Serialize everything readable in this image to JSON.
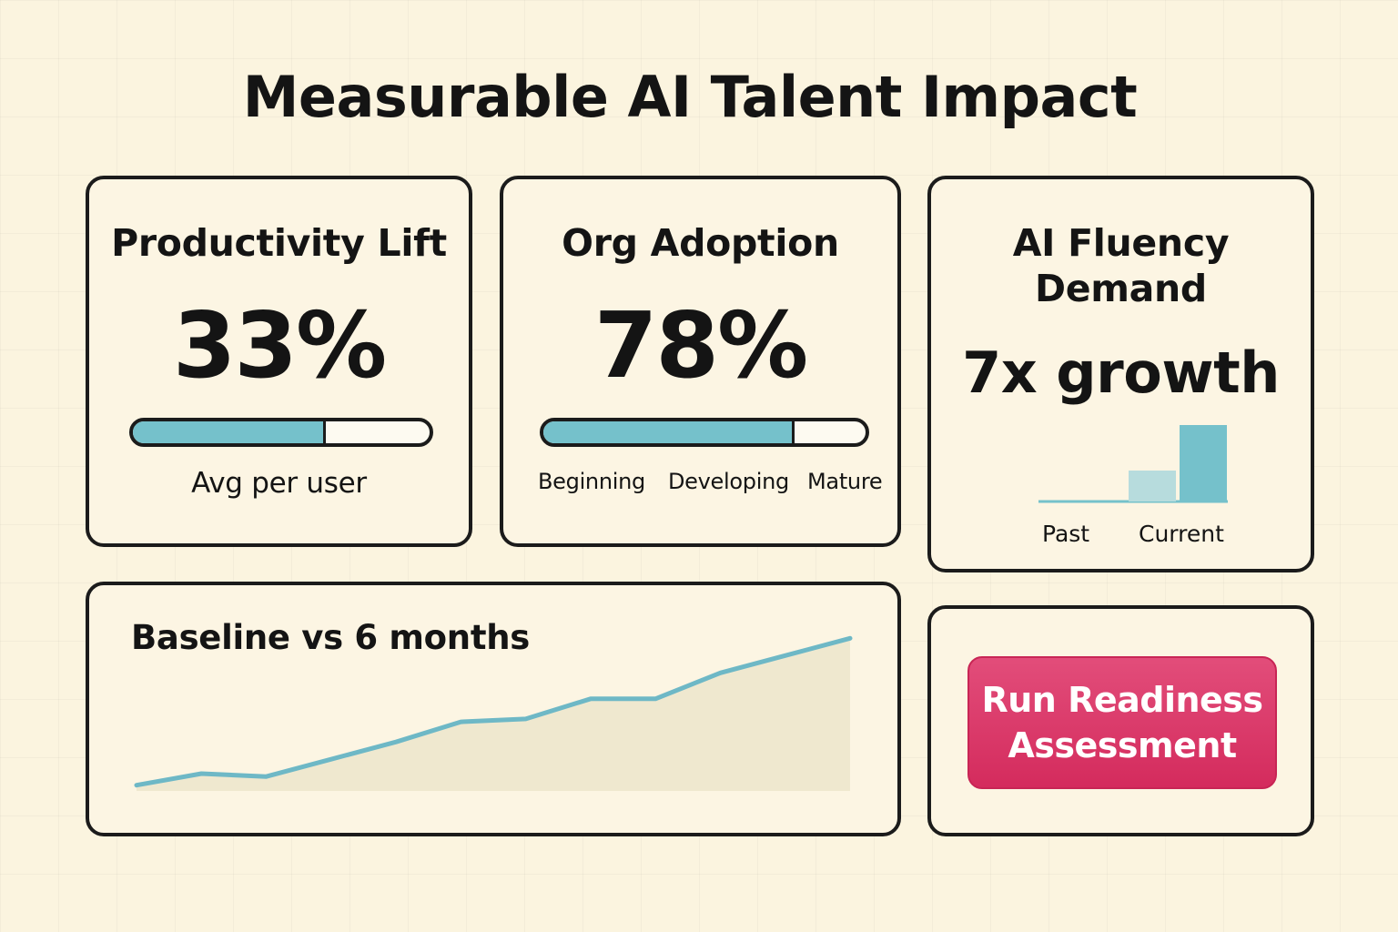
{
  "title": "Measurable AI Talent Impact",
  "productivity": {
    "title": "Productivity Lift",
    "value": "33%",
    "progress": 0.65,
    "caption": "Avg per user"
  },
  "adoption": {
    "title": "Org Adoption",
    "value": "78%",
    "progress": 0.78,
    "stages": [
      "Beginning",
      "Developing",
      "Mature"
    ]
  },
  "fluency": {
    "title_line1": "AI Fluency",
    "title_line2": "Demand",
    "value": "7x growth",
    "bars": [
      {
        "label": "Past",
        "value": 0
      },
      {
        "label": "Current",
        "value": 7
      }
    ],
    "colors": {
      "past": "#b7dcdd",
      "current": "#75c1cb"
    }
  },
  "trend": {
    "title": "Baseline vs 6 months",
    "chart_data": {
      "type": "area",
      "x": [
        0,
        1,
        2,
        3,
        4,
        5,
        6,
        7,
        8,
        9,
        10,
        11
      ],
      "values": [
        2,
        6,
        5,
        11,
        17,
        24,
        25,
        32,
        32,
        41,
        47,
        53
      ],
      "ylim": [
        0,
        55
      ],
      "grid": false,
      "line_color": "#6eb8c6",
      "fill_color": "#efe8cf"
    }
  },
  "cta": {
    "label_line1": "Run Readiness",
    "label_line2": "Assessment",
    "color": "#d42b5d"
  }
}
